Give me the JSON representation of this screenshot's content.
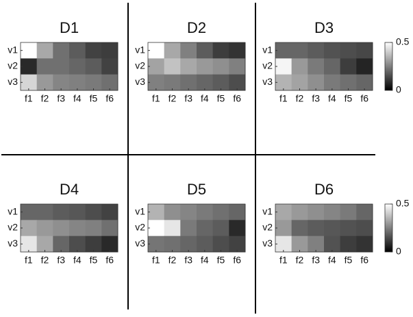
{
  "chart_data": [
    {
      "type": "heatmap",
      "title": "D1",
      "x": [
        "f1",
        "f2",
        "f3",
        "f4",
        "f5",
        "f6"
      ],
      "y": [
        "v1",
        "v2",
        "v3"
      ],
      "values": [
        [
          0.5,
          0.33,
          0.22,
          0.18,
          0.13,
          0.12
        ],
        [
          0.08,
          0.22,
          0.22,
          0.2,
          0.18,
          0.13
        ],
        [
          0.42,
          0.3,
          0.26,
          0.25,
          0.24,
          0.22
        ]
      ],
      "zlim": [
        0,
        0.5
      ],
      "colorbar": false
    },
    {
      "type": "heatmap",
      "title": "D2",
      "x": [
        "f1",
        "f2",
        "f3",
        "f4",
        "f5",
        "f6"
      ],
      "y": [
        "v1",
        "v2",
        "v3"
      ],
      "values": [
        [
          0.5,
          0.33,
          0.25,
          0.18,
          0.12,
          0.1
        ],
        [
          0.32,
          0.38,
          0.33,
          0.3,
          0.28,
          0.25
        ],
        [
          0.25,
          0.24,
          0.22,
          0.2,
          0.18,
          0.15
        ]
      ],
      "zlim": [
        0,
        0.5
      ],
      "colorbar": false
    },
    {
      "type": "heatmap",
      "title": "D3",
      "x": [
        "f1",
        "f2",
        "f3",
        "f4",
        "f5",
        "f6"
      ],
      "y": [
        "v1",
        "v2",
        "v3"
      ],
      "values": [
        [
          0.2,
          0.2,
          0.18,
          0.16,
          0.15,
          0.14
        ],
        [
          0.48,
          0.3,
          0.24,
          0.2,
          0.12,
          0.07
        ],
        [
          0.35,
          0.32,
          0.28,
          0.24,
          0.22,
          0.2
        ]
      ],
      "zlim": [
        0,
        0.5
      ],
      "zticks": [
        0,
        0.5
      ],
      "colorbar": true
    },
    {
      "type": "heatmap",
      "title": "D4",
      "x": [
        "f1",
        "f2",
        "f3",
        "f4",
        "f5",
        "f6"
      ],
      "y": [
        "v1",
        "v2",
        "v3"
      ],
      "values": [
        [
          0.2,
          0.2,
          0.18,
          0.17,
          0.15,
          0.13
        ],
        [
          0.33,
          0.3,
          0.28,
          0.26,
          0.25,
          0.22
        ],
        [
          0.45,
          0.33,
          0.2,
          0.15,
          0.12,
          0.08
        ]
      ],
      "zlim": [
        0,
        0.5
      ],
      "colorbar": false
    },
    {
      "type": "heatmap",
      "title": "D5",
      "x": [
        "f1",
        "f2",
        "f3",
        "f4",
        "f5",
        "f6"
      ],
      "y": [
        "v1",
        "v2",
        "v3"
      ],
      "values": [
        [
          0.35,
          0.28,
          0.26,
          0.24,
          0.22,
          0.2
        ],
        [
          0.5,
          0.45,
          0.24,
          0.2,
          0.18,
          0.08
        ],
        [
          0.23,
          0.22,
          0.2,
          0.18,
          0.15,
          0.13
        ]
      ],
      "zlim": [
        0,
        0.5
      ],
      "colorbar": false
    },
    {
      "type": "heatmap",
      "title": "D6",
      "x": [
        "f1",
        "f2",
        "f3",
        "f4",
        "f5",
        "f6"
      ],
      "y": [
        "v1",
        "v2",
        "v3"
      ],
      "values": [
        [
          0.33,
          0.3,
          0.28,
          0.26,
          0.24,
          0.2
        ],
        [
          0.3,
          0.2,
          0.18,
          0.17,
          0.16,
          0.15
        ],
        [
          0.45,
          0.3,
          0.25,
          0.16,
          0.12,
          0.1
        ]
      ],
      "zlim": [
        0,
        0.5
      ],
      "zticks": [
        0,
        0.5
      ],
      "colorbar": true
    }
  ]
}
